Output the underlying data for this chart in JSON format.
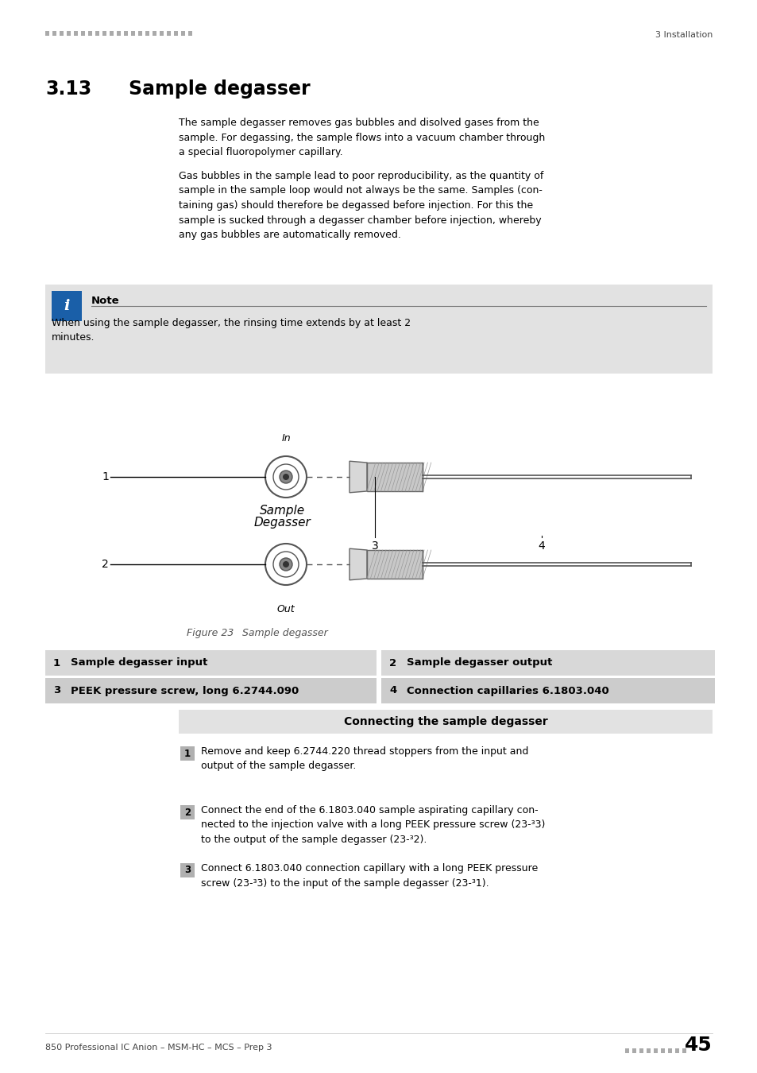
{
  "page_bg": "#ffffff",
  "header_dots_color": "#aaaaaa",
  "header_right_text": "3 Installation",
  "section_num": "3.13",
  "section_title": "Sample degasser",
  "para1": "The sample degasser removes gas bubbles and disolved gases from the\nsample. For degassing, the sample flows into a vacuum chamber through\na special fluoropolymer capillary.",
  "para2": "Gas bubbles in the sample lead to poor reproducibility, as the quantity of\nsample in the sample loop would not always be the same. Samples (con-\ntaining gas) should therefore be degassed before injection. For this the\nsample is sucked through a degasser chamber before injection, whereby\nany gas bubbles are automatically removed.",
  "note_bg": "#e2e2e2",
  "note_icon_bg": "#1a5fa8",
  "note_title": "Note",
  "note_text": "When using the sample degasser, the rinsing time extends by at least 2\nminutes.",
  "figure_caption_num": "Figure 23",
  "figure_caption_text": "Sample degasser",
  "table_bg_light": "#d8d8d8",
  "table_bg_dark": "#cccccc",
  "table_rows": [
    [
      "1",
      "Sample degasser input",
      "2",
      "Sample degasser output"
    ],
    [
      "3",
      "PEEK pressure screw, long 6.2744.090",
      "4",
      "Connection capillaries 6.1803.040"
    ]
  ],
  "connecting_title": "Connecting the sample degasser",
  "step_num_bg": "#b0b0b0",
  "footer_left": "850 Professional IC Anion – MSM-HC – MCS – Prep 3",
  "footer_dots_color": "#aaaaaa",
  "footer_page": "45"
}
